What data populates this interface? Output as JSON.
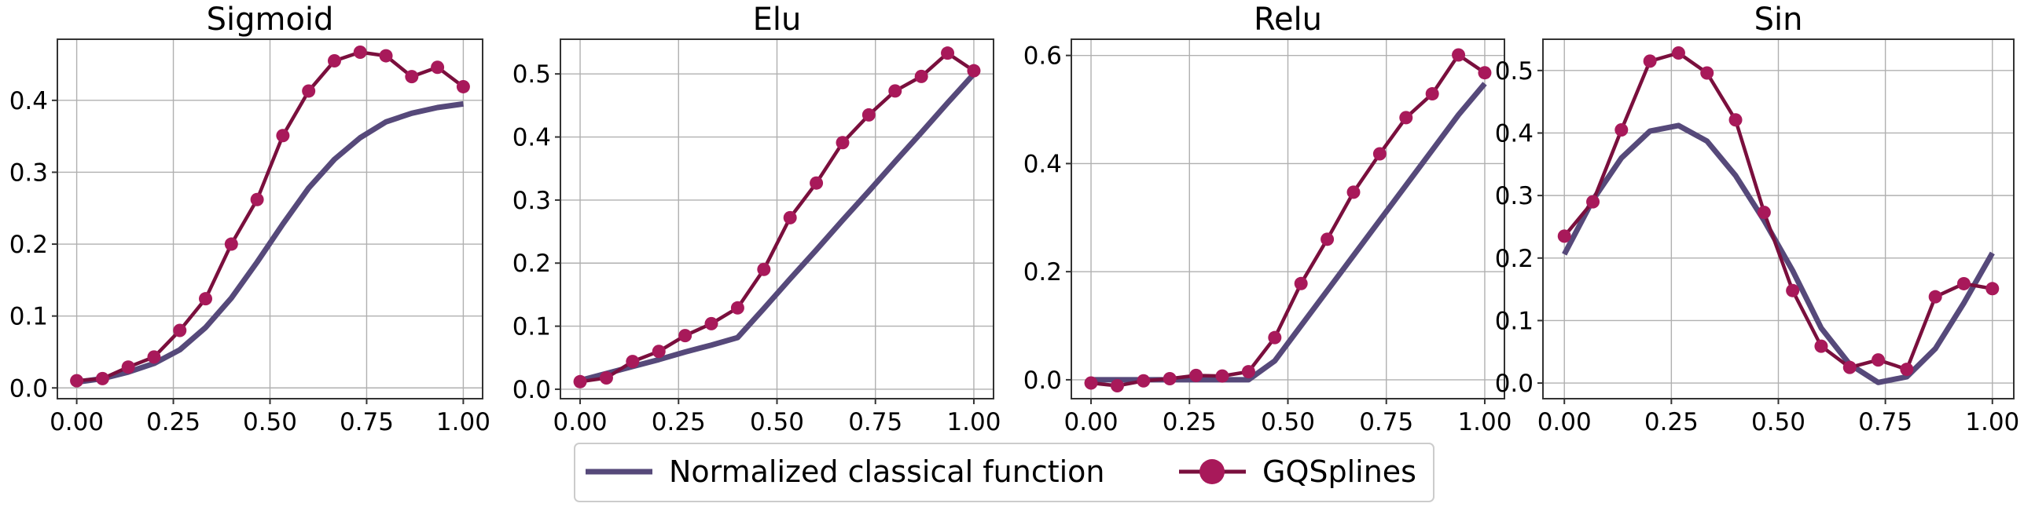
{
  "colors": {
    "classical": "#56497A",
    "gqsplines_line": "#7A0F3D",
    "gqsplines_marker": "#A8195A"
  },
  "legend": {
    "classical_label": "Normalized classical function",
    "gqsplines_label": "GQSplines"
  },
  "chart_data": [
    {
      "type": "line",
      "title": "Sigmoid",
      "xlabel": "",
      "ylabel": "",
      "xlim": [
        -0.05,
        1.05
      ],
      "ylim": [
        -0.015,
        0.485
      ],
      "xticks": [
        0.0,
        0.25,
        0.5,
        0.75,
        1.0
      ],
      "xtick_labels": [
        "0.00",
        "0.25",
        "0.50",
        "0.75",
        "1.00"
      ],
      "yticks": [
        0.0,
        0.1,
        0.2,
        0.3,
        0.4
      ],
      "ytick_labels": [
        "0.0",
        "0.1",
        "0.2",
        "0.3",
        "0.4"
      ],
      "grid": true,
      "x": [
        0.0,
        0.0667,
        0.1333,
        0.2,
        0.2667,
        0.3333,
        0.4,
        0.4667,
        0.5333,
        0.6,
        0.6667,
        0.7333,
        0.8,
        0.8667,
        0.9333,
        1.0
      ],
      "series": [
        {
          "name": "Normalized classical function",
          "values": [
            0.008,
            0.013,
            0.022,
            0.034,
            0.053,
            0.084,
            0.125,
            0.175,
            0.228,
            0.278,
            0.318,
            0.348,
            0.37,
            0.382,
            0.39,
            0.395
          ]
        },
        {
          "name": "GQSplines",
          "values": [
            0.01,
            0.013,
            0.029,
            0.043,
            0.08,
            0.124,
            0.2,
            0.262,
            0.351,
            0.413,
            0.455,
            0.467,
            0.462,
            0.433,
            0.446,
            0.419
          ]
        }
      ]
    },
    {
      "type": "line",
      "title": "Elu",
      "xlabel": "",
      "ylabel": "",
      "xlim": [
        -0.05,
        1.05
      ],
      "ylim": [
        -0.015,
        0.555
      ],
      "xticks": [
        0.0,
        0.25,
        0.5,
        0.75,
        1.0
      ],
      "xtick_labels": [
        "0.00",
        "0.25",
        "0.50",
        "0.75",
        "1.00"
      ],
      "yticks": [
        0.0,
        0.1,
        0.2,
        0.3,
        0.4,
        0.5
      ],
      "ytick_labels": [
        "0.0",
        "0.1",
        "0.2",
        "0.3",
        "0.4",
        "0.5"
      ],
      "grid": true,
      "x": [
        0.0,
        0.0667,
        0.1333,
        0.2,
        0.2667,
        0.3333,
        0.4,
        0.4667,
        0.5333,
        0.6,
        0.6667,
        0.7333,
        0.8,
        0.8667,
        0.9333,
        1.0
      ],
      "series": [
        {
          "name": "Normalized classical function",
          "values": [
            0.014,
            0.025,
            0.036,
            0.047,
            0.059,
            0.07,
            0.082,
            0.128,
            0.175,
            0.221,
            0.268,
            0.314,
            0.361,
            0.407,
            0.454,
            0.5
          ]
        },
        {
          "name": "GQSplines",
          "values": [
            0.012,
            0.018,
            0.044,
            0.06,
            0.085,
            0.104,
            0.129,
            0.19,
            0.272,
            0.327,
            0.391,
            0.435,
            0.473,
            0.496,
            0.533,
            0.505
          ]
        }
      ]
    },
    {
      "type": "line",
      "title": "Relu",
      "xlabel": "",
      "ylabel": "",
      "xlim": [
        -0.05,
        1.05
      ],
      "ylim": [
        -0.035,
        0.63
      ],
      "xticks": [
        0.0,
        0.25,
        0.5,
        0.75,
        1.0
      ],
      "xtick_labels": [
        "0.00",
        "0.25",
        "0.50",
        "0.75",
        "1.00"
      ],
      "yticks": [
        0.0,
        0.2,
        0.4,
        0.6
      ],
      "ytick_labels": [
        "0.0",
        "0.2",
        "0.4",
        "0.6"
      ],
      "grid": true,
      "x": [
        0.0,
        0.0667,
        0.1333,
        0.2,
        0.2667,
        0.3333,
        0.4,
        0.4667,
        0.5333,
        0.6,
        0.6667,
        0.7333,
        0.8,
        0.8667,
        0.9333,
        1.0
      ],
      "series": [
        {
          "name": "Normalized classical function",
          "values": [
            0.0,
            0.0,
            0.0,
            0.0,
            0.0,
            0.0,
            0.0,
            0.035,
            0.1,
            0.165,
            0.23,
            0.295,
            0.36,
            0.425,
            0.49,
            0.548
          ]
        },
        {
          "name": "GQSplines",
          "values": [
            -0.006,
            -0.011,
            -0.002,
            0.002,
            0.008,
            0.007,
            0.015,
            0.078,
            0.178,
            0.26,
            0.347,
            0.418,
            0.485,
            0.529,
            0.601,
            0.568
          ]
        }
      ]
    },
    {
      "type": "line",
      "title": "Sin",
      "xlabel": "",
      "ylabel": "",
      "xlim": [
        -0.05,
        1.05
      ],
      "ylim": [
        -0.025,
        0.55
      ],
      "xticks": [
        0.0,
        0.25,
        0.5,
        0.75,
        1.0
      ],
      "xtick_labels": [
        "0.00",
        "0.25",
        "0.50",
        "0.75",
        "1.00"
      ],
      "yticks": [
        0.0,
        0.1,
        0.2,
        0.3,
        0.4,
        0.5
      ],
      "ytick_labels": [
        "0.0",
        "0.1",
        "0.2",
        "0.3",
        "0.4",
        "0.5"
      ],
      "grid": true,
      "x": [
        0.0,
        0.0667,
        0.1333,
        0.2,
        0.2667,
        0.3333,
        0.4,
        0.4667,
        0.5333,
        0.6,
        0.6667,
        0.7333,
        0.8,
        0.8667,
        0.9333,
        1.0
      ],
      "series": [
        {
          "name": "Normalized classical function",
          "values": [
            0.206,
            0.293,
            0.36,
            0.403,
            0.412,
            0.387,
            0.332,
            0.26,
            0.18,
            0.088,
            0.03,
            0.001,
            0.01,
            0.055,
            0.128,
            0.208
          ]
        },
        {
          "name": "GQSplines",
          "values": [
            0.235,
            0.29,
            0.405,
            0.515,
            0.528,
            0.496,
            0.421,
            0.273,
            0.148,
            0.059,
            0.025,
            0.037,
            0.022,
            0.138,
            0.159,
            0.151
          ]
        }
      ]
    }
  ]
}
